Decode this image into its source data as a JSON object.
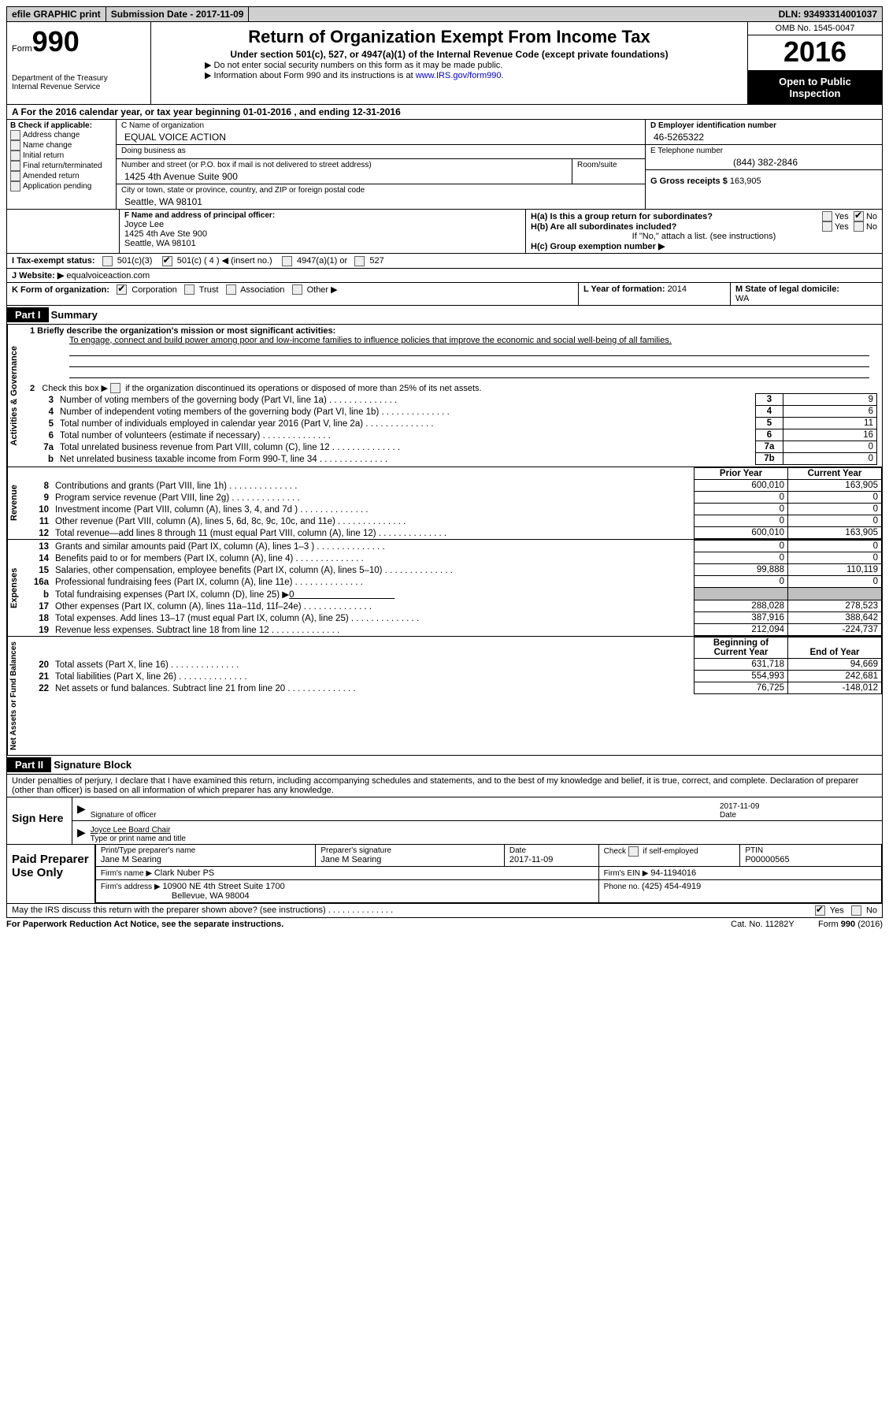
{
  "topbar": {
    "efile": "efile GRAPHIC print",
    "subdate_label": "Submission Date - ",
    "subdate": "2017-11-09",
    "dln_label": "DLN: ",
    "dln": "93493314001037"
  },
  "header": {
    "form_word": "Form",
    "form_num": "990",
    "dept1": "Department of the Treasury",
    "dept2": "Internal Revenue Service",
    "title": "Return of Organization Exempt From Income Tax",
    "subtitle": "Under section 501(c), 527, or 4947(a)(1) of the Internal Revenue Code (except private foundations)",
    "note1": "▶ Do not enter social security numbers on this form as it may be made public.",
    "note2_pre": "▶ Information about Form 990 and its instructions is at ",
    "note2_link": "www.IRS.gov/form990",
    "omb": "OMB No. 1545-0047",
    "year": "2016",
    "inspect1": "Open to Public",
    "inspect2": "Inspection"
  },
  "rowA": "A  For the 2016 calendar year, or tax year beginning 01-01-2016   , and ending 12-31-2016",
  "colB": {
    "hdr": "B Check if applicable:",
    "items": [
      "Address change",
      "Name change",
      "Initial return",
      "Final return/terminated",
      "Amended return",
      "Application pending"
    ]
  },
  "colC": {
    "name_lbl": "C Name of organization",
    "name": "EQUAL VOICE ACTION",
    "dba_lbl": "Doing business as",
    "dba": "",
    "street_lbl": "Number and street (or P.O. box if mail is not delivered to street address)",
    "room_lbl": "Room/suite",
    "street": "1425 4th Avenue Suite 900",
    "city_lbl": "City or town, state or province, country, and ZIP or foreign postal code",
    "city": "Seattle, WA  98101"
  },
  "colD": {
    "ein_lbl": "D Employer identification number",
    "ein": "46-5265322",
    "phone_lbl": "E Telephone number",
    "phone": "(844) 382-2846",
    "gross_lbl": "G Gross receipts $ ",
    "gross": "163,905"
  },
  "rowF": {
    "lbl": "F Name and address of principal officer:",
    "name": "Joyce Lee",
    "addr1": "1425 4th Ave Ste 900",
    "addr2": "Seattle, WA  98101"
  },
  "rowH": {
    "ha": "H(a)  Is this a group return for subordinates?",
    "hb": "H(b)  Are all subordinates included?",
    "hb_note": "If \"No,\" attach a list. (see instructions)",
    "hc": "H(c)  Group exemption number ▶",
    "yes": "Yes",
    "no": "No"
  },
  "rowI": {
    "lbl": "I  Tax-exempt status:",
    "o1": "501(c)(3)",
    "o2": "501(c) ( 4 ) ◀ (insert no.)",
    "o3": "4947(a)(1) or",
    "o4": "527"
  },
  "rowJ": {
    "lbl": "J  Website: ▶ ",
    "val": "equalvoiceaction.com"
  },
  "rowK": {
    "lbl": "K Form of organization:",
    "o1": "Corporation",
    "o2": "Trust",
    "o3": "Association",
    "o4": "Other ▶"
  },
  "rowL": {
    "lbl": "L Year of formation: ",
    "val": "2014"
  },
  "rowM": {
    "lbl": "M State of legal domicile:",
    "val": "WA"
  },
  "part1": {
    "hdr": "Part I",
    "title": "Summary",
    "l1_lbl": "1  Briefly describe the organization's mission or most significant activities:",
    "l1_val": "To engage, connect and build power among poor and low-income families to influence policies that improve the economic and social well-being of all families.",
    "l2": "2   Check this box ▶          if the organization discontinued its operations or disposed of more than 25% of its net assets.",
    "rows_gov": [
      {
        "n": "3",
        "t": "Number of voting members of the governing body (Part VI, line 1a)",
        "b": "3",
        "v": "9"
      },
      {
        "n": "4",
        "t": "Number of independent voting members of the governing body (Part VI, line 1b)",
        "b": "4",
        "v": "6"
      },
      {
        "n": "5",
        "t": "Total number of individuals employed in calendar year 2016 (Part V, line 2a)",
        "b": "5",
        "v": "11"
      },
      {
        "n": "6",
        "t": "Total number of volunteers (estimate if necessary)",
        "b": "6",
        "v": "16"
      },
      {
        "n": "7a",
        "t": "Total unrelated business revenue from Part VIII, column (C), line 12",
        "b": "7a",
        "v": "0"
      },
      {
        "n": "b",
        "t": "Net unrelated business taxable income from Form 990-T, line 34",
        "b": "7b",
        "v": "0"
      }
    ],
    "col_prior": "Prior Year",
    "col_curr": "Current Year",
    "rows_rev": [
      {
        "n": "8",
        "t": "Contributions and grants (Part VIII, line 1h)",
        "p": "600,010",
        "c": "163,905"
      },
      {
        "n": "9",
        "t": "Program service revenue (Part VIII, line 2g)",
        "p": "0",
        "c": "0"
      },
      {
        "n": "10",
        "t": "Investment income (Part VIII, column (A), lines 3, 4, and 7d )",
        "p": "0",
        "c": "0"
      },
      {
        "n": "11",
        "t": "Other revenue (Part VIII, column (A), lines 5, 6d, 8c, 9c, 10c, and 11e)",
        "p": "0",
        "c": "0"
      },
      {
        "n": "12",
        "t": "Total revenue—add lines 8 through 11 (must equal Part VIII, column (A), line 12)",
        "p": "600,010",
        "c": "163,905"
      }
    ],
    "rows_exp": [
      {
        "n": "13",
        "t": "Grants and similar amounts paid (Part IX, column (A), lines 1–3 )",
        "p": "0",
        "c": "0"
      },
      {
        "n": "14",
        "t": "Benefits paid to or for members (Part IX, column (A), line 4)",
        "p": "0",
        "c": "0"
      },
      {
        "n": "15",
        "t": "Salaries, other compensation, employee benefits (Part IX, column (A), lines 5–10)",
        "p": "99,888",
        "c": "110,119"
      },
      {
        "n": "16a",
        "t": "Professional fundraising fees (Part IX, column (A), line 11e)",
        "p": "0",
        "c": "0"
      },
      {
        "n": "b",
        "t": "Total fundraising expenses (Part IX, column (D), line 25) ▶0",
        "p": "",
        "c": "",
        "shade": true
      },
      {
        "n": "17",
        "t": "Other expenses (Part IX, column (A), lines 11a–11d, 11f–24e)",
        "p": "288,028",
        "c": "278,523"
      },
      {
        "n": "18",
        "t": "Total expenses. Add lines 13–17 (must equal Part IX, column (A), line 25)",
        "p": "387,916",
        "c": "388,642"
      },
      {
        "n": "19",
        "t": "Revenue less expenses. Subtract line 18 from line 12",
        "p": "212,094",
        "c": "-224,737"
      }
    ],
    "col_beg": "Beginning of Current Year",
    "col_end": "End of Year",
    "rows_net": [
      {
        "n": "20",
        "t": "Total assets (Part X, line 16)",
        "p": "631,718",
        "c": "94,669"
      },
      {
        "n": "21",
        "t": "Total liabilities (Part X, line 26)",
        "p": "554,993",
        "c": "242,681"
      },
      {
        "n": "22",
        "t": "Net assets or fund balances. Subtract line 21 from line 20",
        "p": "76,725",
        "c": "-148,012"
      }
    ],
    "tabs": {
      "gov": "Activities & Governance",
      "rev": "Revenue",
      "exp": "Expenses",
      "net": "Net Assets or Fund Balances"
    }
  },
  "part2": {
    "hdr": "Part II",
    "title": "Signature Block",
    "decl": "Under penalties of perjury, I declare that I have examined this return, including accompanying schedules and statements, and to the best of my knowledge and belief, it is true, correct, and complete. Declaration of preparer (other than officer) is based on all information of which preparer has any knowledge.",
    "sign_here": "Sign Here",
    "sig_officer": "Signature of officer",
    "sig_date": "Date",
    "sig_date_v": "2017-11-09",
    "sig_name_v": "Joyce Lee  Board Chair",
    "sig_name_lbl": "Type or print name and title",
    "paid": "Paid Preparer Use Only",
    "p_name_lbl": "Print/Type preparer's name",
    "p_name": "Jane M Searing",
    "p_sig_lbl": "Preparer's signature",
    "p_sig": "Jane M Searing",
    "p_date_lbl": "Date",
    "p_date": "2017-11-09",
    "p_self": "Check          if self-employed",
    "p_ptin_lbl": "PTIN",
    "p_ptin": "P00000565",
    "firm_name_lbl": "Firm's name    ▶ ",
    "firm_name": "Clark Nuber PS",
    "firm_ein_lbl": "Firm's EIN ▶ ",
    "firm_ein": "94-1194016",
    "firm_addr_lbl": "Firm's address ▶ ",
    "firm_addr1": "10900 NE 4th Street Suite 1700",
    "firm_addr2": "Bellevue, WA  98004",
    "firm_phone_lbl": "Phone no. ",
    "firm_phone": "(425) 454-4919",
    "discuss": "May the IRS discuss this return with the preparer shown above? (see instructions)",
    "yes": "Yes",
    "no": "No"
  },
  "footer": {
    "pra": "For Paperwork Reduction Act Notice, see the separate instructions.",
    "cat": "Cat. No. 11282Y",
    "form": "Form 990 (2016)"
  },
  "colors": {
    "topbar_bg": "#d0d0d0",
    "black": "#000000",
    "shade": "#bfbfbf",
    "link": "#0000cc"
  }
}
